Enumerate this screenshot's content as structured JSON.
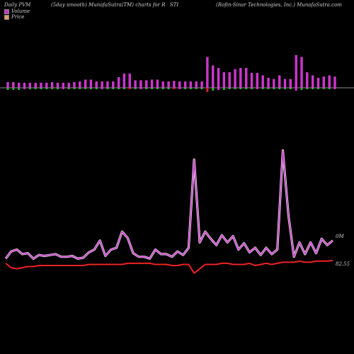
{
  "header": {
    "left": "Daily PVM",
    "mid": "(5day smooth) MunafaSutra(TM) charts for R",
    "ticker": "STI",
    "right": "(Rofin-Sinar Technologies, Inc.) MunafaSutra.com"
  },
  "legend": [
    {
      "label": "Volume",
      "color": "#cc33cc"
    },
    {
      "label": "Price",
      "color": "#e8a060"
    }
  ],
  "labels": {
    "volume_label": "0M",
    "price_label": "82.55"
  },
  "colors": {
    "background": "#000000",
    "volume_up": "#cc33cc",
    "volume_down_top": "#cc33cc",
    "volume_negative": "#33aa33",
    "volume_negative_red": "#dd2222",
    "pvm_line": "#cc44cc",
    "price_line": "#ee2222"
  },
  "chart_data": {
    "type": "line",
    "series": [
      {
        "name": "Volume",
        "kind": "bar",
        "values": [
          9,
          9,
          8,
          8,
          8,
          8,
          8,
          8,
          9,
          8,
          8,
          8,
          9,
          10,
          13,
          13,
          10,
          10,
          10,
          10,
          17,
          23,
          23,
          12,
          12,
          12,
          13,
          13,
          10,
          10,
          11,
          10,
          10,
          10,
          10,
          10,
          50,
          36,
          32,
          25,
          25,
          30,
          32,
          32,
          24,
          24,
          20,
          16,
          14,
          20,
          14,
          14,
          53,
          50,
          25,
          20,
          16,
          18,
          20,
          18
        ],
        "below": [
          3,
          3,
          3,
          2,
          2,
          2,
          2,
          2,
          2,
          2,
          2,
          2,
          2,
          2,
          2,
          2,
          2,
          2,
          2,
          2,
          2,
          2,
          2,
          2,
          2,
          2,
          2,
          2,
          2,
          2,
          2,
          2,
          2,
          2,
          2,
          2,
          6,
          4,
          3,
          3,
          2,
          2,
          2,
          2,
          2,
          2,
          2,
          2,
          2,
          2,
          2,
          2,
          4,
          3,
          2,
          2,
          2,
          2,
          2,
          2
        ]
      },
      {
        "name": "PVM",
        "values": [
          0.1,
          0.18,
          0.2,
          0.15,
          0.16,
          0.1,
          0.14,
          0.13,
          0.14,
          0.15,
          0.12,
          0.12,
          0.13,
          0.1,
          0.11,
          0.17,
          0.2,
          0.3,
          0.13,
          0.2,
          0.22,
          0.4,
          0.33,
          0.16,
          0.12,
          0.12,
          0.1,
          0.2,
          0.15,
          0.15,
          0.12,
          0.18,
          0.14,
          0.22,
          1.2,
          0.28,
          0.4,
          0.32,
          0.25,
          0.36,
          0.28,
          0.35,
          0.2,
          0.27,
          0.17,
          0.22,
          0.14,
          0.22,
          0.15,
          0.2,
          1.3,
          0.58,
          0.12,
          0.28,
          0.15,
          0.28,
          0.16,
          0.32,
          0.25,
          0.3
        ]
      },
      {
        "name": "Price",
        "values": [
          82.3,
          81.9,
          81.8,
          81.9,
          82.0,
          82.0,
          82.1,
          82.1,
          82.1,
          82.1,
          82.1,
          82.1,
          82.1,
          82.1,
          82.1,
          82.2,
          82.2,
          82.2,
          82.2,
          82.2,
          82.2,
          82.2,
          82.3,
          82.3,
          82.3,
          82.3,
          82.3,
          82.2,
          82.2,
          82.2,
          82.1,
          82.1,
          82.2,
          82.2,
          81.4,
          81.8,
          82.2,
          82.2,
          82.2,
          82.3,
          82.3,
          82.2,
          82.2,
          82.2,
          82.3,
          82.1,
          82.2,
          82.3,
          82.2,
          82.3,
          82.4,
          82.4,
          82.4,
          82.5,
          82.4,
          82.4,
          82.5,
          82.5,
          82.5,
          82.55
        ]
      }
    ]
  }
}
